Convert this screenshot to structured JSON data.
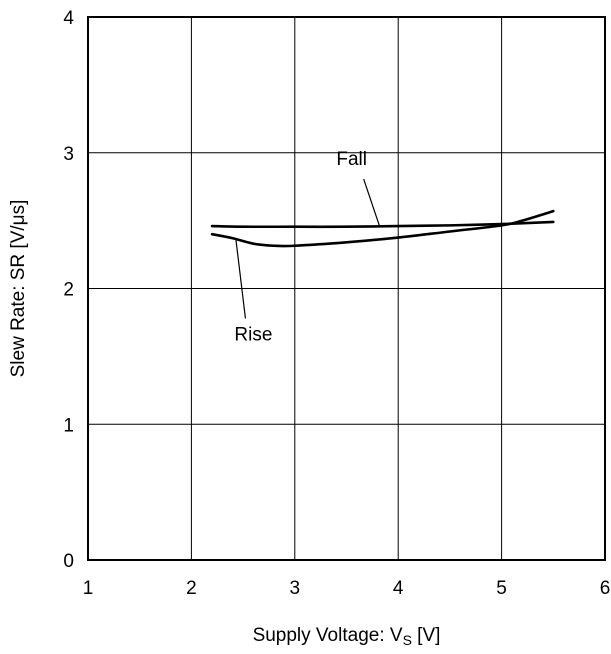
{
  "chart_data": {
    "type": "line",
    "title": "",
    "xlabel": {
      "main": "Supply Voltage:  V",
      "sub": "S",
      "unit": " [V]"
    },
    "ylabel": "Slew Rate:  SR [V/μs]",
    "xlim": [
      1,
      6
    ],
    "ylim": [
      0,
      4
    ],
    "xticks": [
      "1",
      "2",
      "3",
      "4",
      "5",
      "6"
    ],
    "yticks": [
      "0",
      "1",
      "2",
      "3",
      "4"
    ],
    "grid": true,
    "line_color": "#000000",
    "series": [
      {
        "name": "Fall",
        "x": [
          2.2,
          2.5,
          3.0,
          3.5,
          4.0,
          4.5,
          5.0,
          5.5
        ],
        "y": [
          2.46,
          2.455,
          2.455,
          2.455,
          2.46,
          2.465,
          2.475,
          2.49
        ]
      },
      {
        "name": "Rise",
        "x": [
          2.2,
          2.4,
          2.6,
          2.8,
          3.0,
          3.5,
          4.0,
          4.5,
          5.0,
          5.2,
          5.5
        ],
        "y": [
          2.4,
          2.37,
          2.33,
          2.315,
          2.315,
          2.34,
          2.375,
          2.42,
          2.465,
          2.5,
          2.57
        ]
      }
    ]
  }
}
